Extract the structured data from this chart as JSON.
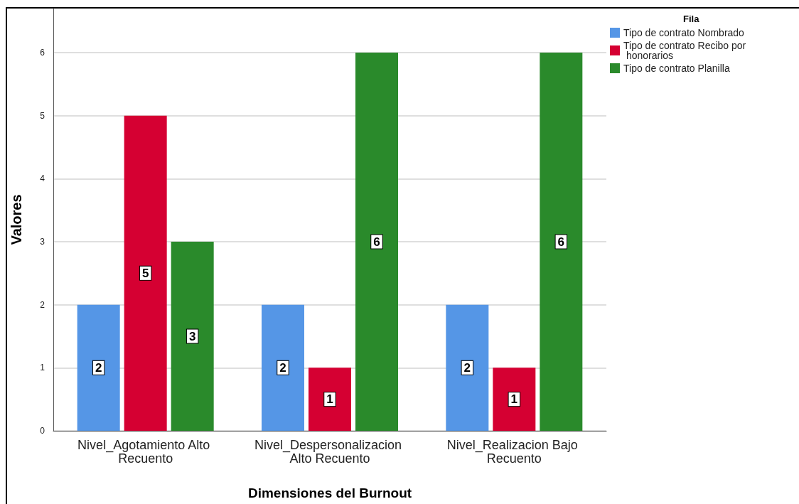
{
  "chart_data": {
    "type": "bar",
    "xlabel": "Dimensiones del Burnout",
    "ylabel": "Valores",
    "legend_title": "Fila",
    "categories": [
      "Nivel_Agotamiento Alto Recuento",
      "Nivel_Despersonalizacion Alto Recuento",
      "Nivel_Realizacion Bajo Recuento"
    ],
    "series": [
      {
        "name": "Tipo de contrato Nombrado",
        "color": "#5596e6",
        "values": [
          2,
          2,
          2
        ]
      },
      {
        "name": "Tipo de contrato Recibo por honorarios",
        "color": "#d50032",
        "values": [
          5,
          1,
          1
        ]
      },
      {
        "name": "Tipo de contrato Planilla",
        "color": "#2a8a2b",
        "values": [
          3,
          6,
          6
        ]
      }
    ],
    "ylim": [
      0,
      6.7
    ],
    "yticks": [
      0,
      1,
      2,
      3,
      4,
      5,
      6
    ],
    "grid": "y",
    "legend": "top right",
    "data_labels": true
  }
}
